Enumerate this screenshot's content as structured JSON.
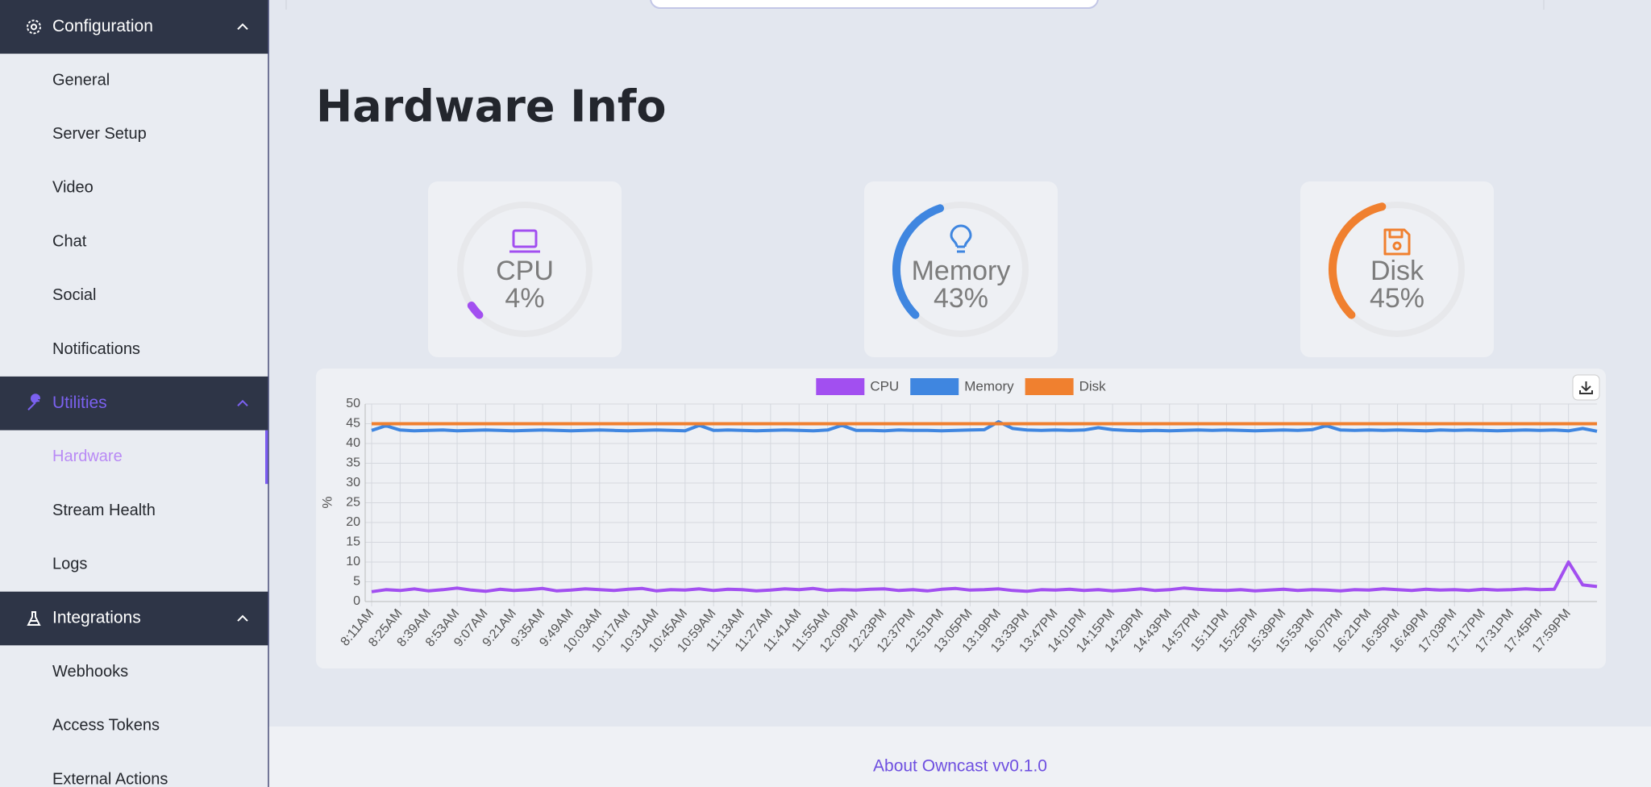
{
  "sidebar": {
    "sections": [
      {
        "title": "Configuration",
        "items": [
          "General",
          "Server Setup",
          "Video",
          "Chat",
          "Social",
          "Notifications"
        ]
      },
      {
        "title": "Utilities",
        "items": [
          "Hardware",
          "Stream Health",
          "Logs"
        ]
      },
      {
        "title": "Integrations",
        "items": [
          "Webhooks",
          "Access Tokens",
          "External Actions"
        ]
      }
    ]
  },
  "page": {
    "title": "Hardware Info"
  },
  "gauges": [
    {
      "name": "CPU",
      "value": 4,
      "value_label": "4%",
      "color": "#a24ff0"
    },
    {
      "name": "Memory",
      "value": 43,
      "value_label": "43%",
      "color": "#3f86e0"
    },
    {
      "name": "Disk",
      "value": 45,
      "value_label": "45%",
      "color": "#f0802f"
    }
  ],
  "chart_data": {
    "type": "line",
    "y_label": "%",
    "ylim": [
      0,
      50
    ],
    "yticks": [
      0,
      5,
      10,
      15,
      20,
      25,
      30,
      35,
      40,
      45,
      50
    ],
    "grid": true,
    "legend": "top",
    "categories": [
      "8:11AM",
      null,
      "8:25AM",
      null,
      "8:39AM",
      null,
      "8:53AM",
      null,
      "9:07AM",
      null,
      "9:21AM",
      null,
      "9:35AM",
      null,
      "9:49AM",
      null,
      "10:03AM",
      null,
      "10:17AM",
      null,
      "10:31AM",
      null,
      "10:45AM",
      null,
      "10:59AM",
      null,
      "11:13AM",
      null,
      "11:27AM",
      null,
      "11:41AM",
      null,
      "11:55AM",
      null,
      "12:09PM",
      null,
      "12:23PM",
      null,
      "12:37PM",
      null,
      "12:51PM",
      null,
      "13:05PM",
      null,
      "13:19PM",
      null,
      "13:33PM",
      null,
      "13:47PM",
      null,
      "14:01PM",
      null,
      "14:15PM",
      null,
      "14:29PM",
      null,
      "14:43PM",
      null,
      "14:57PM",
      null,
      "15:11PM",
      null,
      "15:25PM",
      null,
      "15:39PM",
      null,
      "15:53PM",
      null,
      "16:07PM",
      null,
      "16:21PM",
      null,
      "16:35PM",
      null,
      "16:49PM",
      null,
      "17:03PM",
      null,
      "17:17PM",
      null,
      "17:31PM",
      null,
      "17:45PM",
      null,
      "17:59PM",
      null,
      null
    ],
    "series": [
      {
        "name": "CPU",
        "color": "#a24ff0",
        "values": [
          2.5,
          3,
          2.8,
          3.2,
          2.7,
          3,
          3.4,
          2.9,
          2.6,
          3.1,
          2.8,
          3,
          3.3,
          2.7,
          2.9,
          3.2,
          3,
          2.8,
          3.1,
          3.3,
          2.7,
          3,
          2.9,
          3.2,
          2.8,
          3.1,
          3,
          2.7,
          2.9,
          3.2,
          3,
          3.3,
          2.8,
          3,
          2.9,
          3.1,
          3.2,
          2.8,
          3,
          2.7,
          3.1,
          3.3,
          2.9,
          3,
          3.2,
          2.8,
          2.6,
          3,
          2.9,
          3.1,
          2.8,
          3,
          2.7,
          2.9,
          3.2,
          2.8,
          3,
          3.4,
          3.1,
          2.9,
          2.8,
          3,
          2.7,
          2.9,
          3.1,
          2.8,
          3,
          2.9,
          2.7,
          3,
          2.9,
          3.2,
          3,
          2.8,
          3.1,
          2.9,
          3,
          2.8,
          3.1,
          2.9,
          3,
          3.2,
          3,
          3.1,
          10,
          4.2,
          3.8
        ]
      },
      {
        "name": "Memory",
        "color": "#3f86e0",
        "values": [
          43.3,
          44.5,
          43.4,
          43.2,
          43.3,
          43.4,
          43.2,
          43.3,
          43.4,
          43.3,
          43.2,
          43.3,
          43.4,
          43.3,
          43.2,
          43.3,
          43.4,
          43.3,
          43.2,
          43.3,
          43.4,
          43.3,
          43.2,
          44.6,
          43.3,
          43.4,
          43.3,
          43.2,
          43.3,
          43.4,
          43.3,
          43.2,
          43.4,
          44.6,
          43.3,
          43.3,
          43.2,
          43.4,
          43.3,
          43.3,
          43.2,
          43.3,
          43.4,
          43.5,
          45.5,
          43.8,
          43.4,
          43.3,
          43.4,
          43.3,
          43.4,
          44,
          43.5,
          43.3,
          43.2,
          43.3,
          43.2,
          43.3,
          43.4,
          43.3,
          43.4,
          43.3,
          43.2,
          43.3,
          43.4,
          43.3,
          43.5,
          44.5,
          43.4,
          43.3,
          43.4,
          43.3,
          43.4,
          43.3,
          43.2,
          43.4,
          43.3,
          43.4,
          43.3,
          43.2,
          43.3,
          43.4,
          43.3,
          43.4,
          43.2,
          43.8,
          43.1
        ]
      },
      {
        "name": "Disk",
        "color": "#f0802f",
        "values": [
          45,
          45,
          45,
          45,
          45,
          45,
          45,
          45,
          45,
          45,
          45,
          45,
          45,
          45,
          45,
          45,
          45,
          45,
          45,
          45,
          45,
          45,
          45,
          45,
          45,
          45,
          45,
          45,
          45,
          45,
          45,
          45,
          45,
          45,
          45,
          45,
          45,
          45,
          45,
          45,
          45,
          45,
          45,
          45,
          45,
          45,
          45,
          45,
          45,
          45,
          45,
          45,
          45,
          45,
          45,
          45,
          45,
          45,
          45,
          45,
          45,
          45,
          45,
          45,
          45,
          45,
          45,
          45,
          45,
          45,
          45,
          45,
          45,
          45,
          45,
          45,
          45,
          45,
          45,
          45,
          45,
          45,
          45,
          45,
          45,
          45,
          45
        ]
      }
    ]
  },
  "footer": {
    "text": "About Owncast vv0.1.0"
  }
}
